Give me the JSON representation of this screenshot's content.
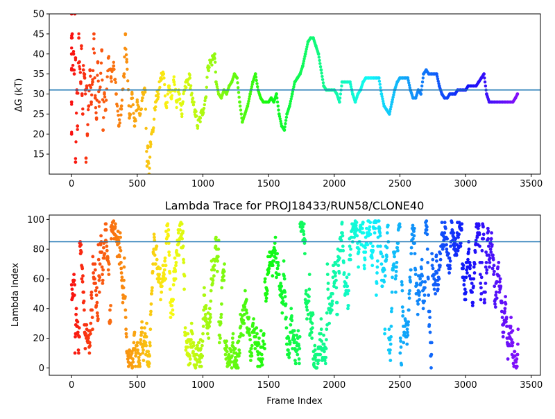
{
  "chart_data": [
    {
      "type": "scatter",
      "title": "",
      "xlabel": "",
      "ylabel": "ΔG (kT)",
      "xlim": [
        -170,
        3570
      ],
      "ylim": [
        10,
        50
      ],
      "xticks": [
        0,
        500,
        1000,
        1500,
        2000,
        2500,
        3000,
        3500
      ],
      "yticks": [
        15,
        20,
        25,
        30,
        35,
        40,
        45,
        50
      ],
      "hline": 31.0,
      "hline_color": "#1f77b4",
      "colormap": "rainbow_r (x = frame index)",
      "points": [
        [
          0,
          20
        ],
        [
          0,
          28
        ],
        [
          0,
          36
        ],
        [
          0,
          40
        ],
        [
          0,
          44
        ],
        [
          0,
          50
        ],
        [
          5,
          45
        ],
        [
          10,
          36
        ],
        [
          15,
          40
        ],
        [
          20,
          35
        ],
        [
          25,
          50
        ],
        [
          30,
          39
        ],
        [
          30,
          13
        ],
        [
          40,
          31
        ],
        [
          45,
          22
        ],
        [
          55,
          44
        ],
        [
          60,
          38
        ],
        [
          70,
          33
        ],
        [
          75,
          42
        ],
        [
          80,
          30
        ],
        [
          85,
          25
        ],
        [
          90,
          36
        ],
        [
          100,
          34
        ],
        [
          105,
          31
        ],
        [
          110,
          14
        ],
        [
          115,
          32
        ],
        [
          120,
          20
        ],
        [
          130,
          27
        ],
        [
          140,
          36
        ],
        [
          150,
          28
        ],
        [
          160,
          33
        ],
        [
          170,
          45
        ],
        [
          180,
          29
        ],
        [
          190,
          24
        ],
        [
          200,
          38
        ],
        [
          210,
          28
        ],
        [
          230,
          41
        ],
        [
          240,
          21
        ],
        [
          250,
          30
        ],
        [
          260,
          26
        ],
        [
          280,
          39
        ],
        [
          300,
          34
        ],
        [
          320,
          37
        ],
        [
          340,
          30
        ],
        [
          360,
          22
        ],
        [
          380,
          27
        ],
        [
          400,
          35
        ],
        [
          410,
          45
        ],
        [
          420,
          38
        ],
        [
          440,
          24
        ],
        [
          460,
          30
        ],
        [
          480,
          22
        ],
        [
          500,
          28
        ],
        [
          520,
          25
        ],
        [
          540,
          29
        ],
        [
          560,
          31
        ],
        [
          575,
          12
        ],
        [
          580,
          17
        ],
        [
          590,
          10
        ],
        [
          600,
          18
        ],
        [
          620,
          21
        ],
        [
          640,
          28
        ],
        [
          660,
          30
        ],
        [
          680,
          34
        ],
        [
          700,
          35
        ],
        [
          720,
          27
        ],
        [
          740,
          32
        ],
        [
          760,
          29
        ],
        [
          780,
          33
        ],
        [
          800,
          28
        ],
        [
          820,
          30
        ],
        [
          840,
          25
        ],
        [
          860,
          31
        ],
        [
          880,
          33
        ],
        [
          900,
          34
        ],
        [
          920,
          28
        ],
        [
          940,
          26
        ],
        [
          960,
          22
        ],
        [
          980,
          24
        ],
        [
          1000,
          26
        ],
        [
          1020,
          29
        ],
        [
          1040,
          37
        ],
        [
          1060,
          38
        ],
        [
          1080,
          39
        ],
        [
          1090,
          40
        ],
        [
          1100,
          33
        ],
        [
          1120,
          30
        ],
        [
          1140,
          29
        ],
        [
          1160,
          31
        ],
        [
          1180,
          30
        ],
        [
          1200,
          32
        ],
        [
          1220,
          33
        ],
        [
          1240,
          35
        ],
        [
          1260,
          34
        ],
        [
          1280,
          28
        ],
        [
          1300,
          23
        ],
        [
          1320,
          25
        ],
        [
          1340,
          27
        ],
        [
          1360,
          30
        ],
        [
          1380,
          33
        ],
        [
          1400,
          35
        ],
        [
          1420,
          31
        ],
        [
          1440,
          29
        ],
        [
          1460,
          28
        ],
        [
          1480,
          28
        ],
        [
          1500,
          28
        ],
        [
          1520,
          29
        ],
        [
          1540,
          28
        ],
        [
          1560,
          30
        ],
        [
          1580,
          25
        ],
        [
          1600,
          22
        ],
        [
          1620,
          21
        ],
        [
          1640,
          25
        ],
        [
          1660,
          27
        ],
        [
          1680,
          30
        ],
        [
          1700,
          33
        ],
        [
          1720,
          34
        ],
        [
          1740,
          35
        ],
        [
          1760,
          37
        ],
        [
          1780,
          40
        ],
        [
          1800,
          43
        ],
        [
          1820,
          44
        ],
        [
          1840,
          44
        ],
        [
          1860,
          42
        ],
        [
          1880,
          40
        ],
        [
          1900,
          36
        ],
        [
          1920,
          32
        ],
        [
          1940,
          31
        ],
        [
          1960,
          31
        ],
        [
          1980,
          31
        ],
        [
          2000,
          31
        ],
        [
          2020,
          30
        ],
        [
          2040,
          28
        ],
        [
          2060,
          33
        ],
        [
          2080,
          33
        ],
        [
          2100,
          33
        ],
        [
          2120,
          33
        ],
        [
          2140,
          30
        ],
        [
          2160,
          28
        ],
        [
          2180,
          30
        ],
        [
          2200,
          31
        ],
        [
          2220,
          33
        ],
        [
          2240,
          34
        ],
        [
          2260,
          34
        ],
        [
          2280,
          34
        ],
        [
          2300,
          34
        ],
        [
          2320,
          34
        ],
        [
          2340,
          34
        ],
        [
          2360,
          30
        ],
        [
          2380,
          27
        ],
        [
          2400,
          26
        ],
        [
          2420,
          25
        ],
        [
          2440,
          28
        ],
        [
          2460,
          31
        ],
        [
          2480,
          33
        ],
        [
          2500,
          34
        ],
        [
          2520,
          34
        ],
        [
          2540,
          34
        ],
        [
          2560,
          34
        ],
        [
          2580,
          31
        ],
        [
          2600,
          29
        ],
        [
          2620,
          29
        ],
        [
          2640,
          31
        ],
        [
          2660,
          30
        ],
        [
          2680,
          35
        ],
        [
          2700,
          36
        ],
        [
          2720,
          35
        ],
        [
          2740,
          35
        ],
        [
          2760,
          35
        ],
        [
          2780,
          35
        ],
        [
          2800,
          32
        ],
        [
          2820,
          30
        ],
        [
          2840,
          29
        ],
        [
          2860,
          29
        ],
        [
          2880,
          30
        ],
        [
          2900,
          30
        ],
        [
          2920,
          30
        ],
        [
          2940,
          31
        ],
        [
          2960,
          31
        ],
        [
          2980,
          31
        ],
        [
          3000,
          31
        ],
        [
          3020,
          32
        ],
        [
          3040,
          32
        ],
        [
          3060,
          32
        ],
        [
          3080,
          32
        ],
        [
          3100,
          33
        ],
        [
          3120,
          34
        ],
        [
          3140,
          35
        ],
        [
          3160,
          30
        ],
        [
          3180,
          28
        ],
        [
          3200,
          28
        ],
        [
          3220,
          28
        ],
        [
          3240,
          28
        ],
        [
          3260,
          28
        ],
        [
          3280,
          28
        ],
        [
          3300,
          28
        ],
        [
          3320,
          28
        ],
        [
          3340,
          28
        ],
        [
          3360,
          28
        ],
        [
          3380,
          29
        ],
        [
          3395,
          30
        ]
      ]
    },
    {
      "type": "scatter",
      "title": "Lambda Trace for PROJ18433/RUN58/CLONE40",
      "xlabel": "Frame Index",
      "ylabel": "Lambda Index",
      "xlim": [
        -170,
        3570
      ],
      "ylim": [
        -5,
        103
      ],
      "xticks": [
        0,
        500,
        1000,
        1500,
        2000,
        2500,
        3000,
        3500
      ],
      "yticks": [
        0,
        20,
        40,
        60,
        80,
        100
      ],
      "hline": 85,
      "hline_color": "#1f77b4",
      "colormap": "rainbow_r (x = frame index)",
      "lambda_states": 100,
      "frame_range": [
        0,
        3400
      ]
    }
  ]
}
